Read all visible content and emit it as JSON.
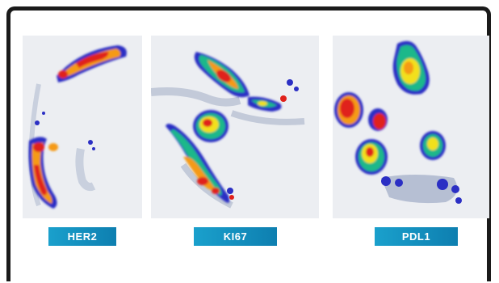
{
  "panels": [
    {
      "id": "her2",
      "label": "HER2"
    },
    {
      "id": "ki67",
      "label": "KI67"
    },
    {
      "id": "pdl1",
      "label": "PDL1"
    }
  ],
  "colors": {
    "hot": "#e0201a",
    "warm": "#f59a12",
    "mid": "#f2e01a",
    "cool": "#1fb88a",
    "cold": "#2b2fc4",
    "tissue": "#b6bfd3",
    "background": "#eceef2",
    "label_bg": "#1497c4"
  }
}
